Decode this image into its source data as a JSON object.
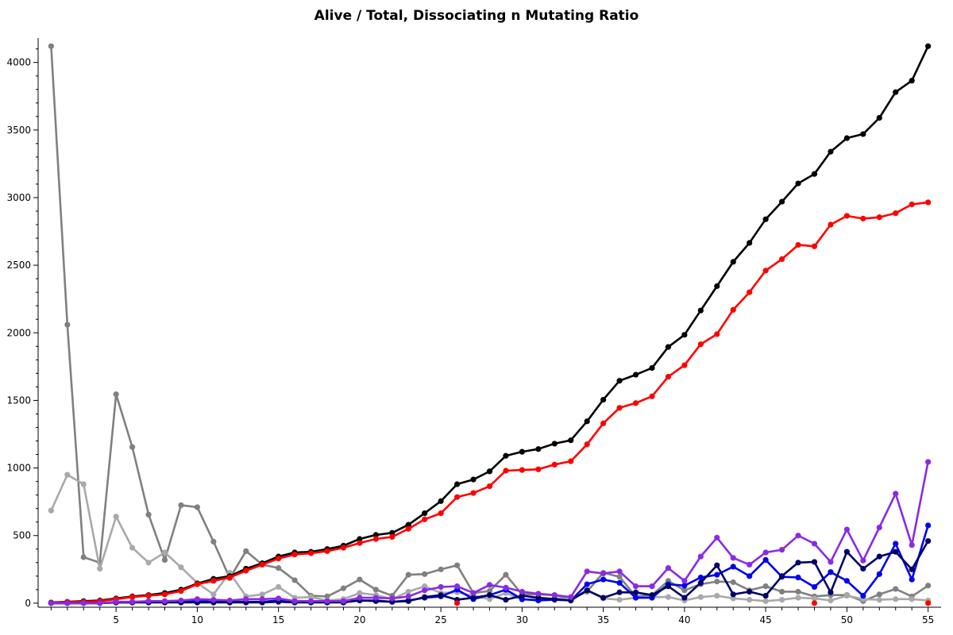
{
  "chart_data": {
    "type": "line",
    "title": "Alive / Total, Dissociating n Mutating Ratio",
    "xlabel": "",
    "ylabel": "",
    "xlim": [
      0.2,
      55.8
    ],
    "ylim": [
      -30,
      4180
    ],
    "x_ticks": [
      5,
      10,
      15,
      20,
      25,
      30,
      35,
      40,
      45,
      50,
      55
    ],
    "y_ticks": [
      0,
      500,
      1000,
      1500,
      2000,
      2500,
      3000,
      3500,
      4000
    ],
    "grid": false,
    "legend": "none",
    "x": [
      1,
      2,
      3,
      4,
      5,
      6,
      7,
      8,
      9,
      10,
      11,
      12,
      13,
      14,
      15,
      16,
      17,
      18,
      19,
      20,
      21,
      22,
      23,
      24,
      25,
      26,
      27,
      28,
      29,
      30,
      31,
      32,
      33,
      34,
      35,
      36,
      37,
      38,
      39,
      40,
      41,
      42,
      43,
      44,
      45,
      46,
      47,
      48,
      49,
      50,
      51,
      52,
      53,
      54,
      55
    ],
    "series": [
      {
        "color": "#808080",
        "values": [
          4120,
          2060,
          340,
          300,
          1545,
          1155,
          655,
          320,
          725,
          710,
          455,
          185,
          385,
          285,
          260,
          170,
          55,
          50,
          110,
          175,
          100,
          55,
          210,
          215,
          250,
          280,
          75,
          90,
          210,
          65,
          65,
          60,
          30,
          85,
          225,
          195,
          50,
          60,
          165,
          95,
          140,
          160,
          155,
          95,
          125,
          85,
          85,
          50,
          60,
          60,
          15,
          65,
          105,
          50,
          130
        ]
      },
      {
        "color": "#a9a9a9",
        "values": [
          685,
          950,
          880,
          255,
          640,
          410,
          300,
          375,
          265,
          150,
          65,
          225,
          50,
          65,
          120,
          40,
          45,
          20,
          30,
          75,
          60,
          30,
          85,
          125,
          75,
          80,
          55,
          30,
          75,
          25,
          30,
          35,
          30,
          95,
          35,
          25,
          40,
          45,
          45,
          20,
          45,
          55,
          35,
          25,
          15,
          25,
          40,
          35,
          20,
          55,
          30,
          25,
          30,
          30,
          20
        ]
      },
      {
        "color": "#000000",
        "values": [
          5,
          10,
          15,
          20,
          35,
          50,
          60,
          75,
          100,
          145,
          180,
          200,
          255,
          295,
          345,
          375,
          380,
          400,
          425,
          475,
          505,
          520,
          580,
          665,
          755,
          880,
          915,
          975,
          1090,
          1120,
          1140,
          1180,
          1205,
          1345,
          1505,
          1645,
          1690,
          1740,
          1895,
          1985,
          2165,
          2345,
          2525,
          2665,
          2840,
          2970,
          3105,
          3175,
          3340,
          3440,
          3470,
          3590,
          3780,
          3865,
          4120
        ]
      },
      {
        "color": "#ff0000",
        "values": [
          3,
          8,
          10,
          15,
          30,
          45,
          55,
          65,
          90,
          140,
          165,
          190,
          240,
          285,
          330,
          360,
          370,
          385,
          410,
          445,
          475,
          490,
          550,
          620,
          665,
          785,
          815,
          865,
          980,
          985,
          990,
          1025,
          1050,
          1175,
          1330,
          1445,
          1480,
          1530,
          1675,
          1760,
          1915,
          1990,
          2170,
          2300,
          2460,
          2545,
          2650,
          2640,
          2800,
          2865,
          2845,
          2855,
          2885,
          2950,
          2965
        ]
      },
      {
        "color": "#0000ee",
        "values": [
          0,
          0,
          0,
          0,
          5,
          5,
          10,
          10,
          10,
          15,
          10,
          10,
          10,
          10,
          20,
          10,
          10,
          10,
          10,
          20,
          20,
          10,
          20,
          40,
          50,
          100,
          30,
          60,
          100,
          30,
          20,
          25,
          20,
          140,
          175,
          150,
          40,
          40,
          140,
          130,
          190,
          210,
          270,
          200,
          320,
          195,
          190,
          120,
          230,
          165,
          55,
          215,
          440,
          175,
          575
        ]
      },
      {
        "color": "#000066",
        "values": [
          0,
          0,
          0,
          0,
          5,
          5,
          5,
          5,
          5,
          5,
          5,
          5,
          5,
          5,
          10,
          5,
          5,
          5,
          5,
          20,
          15,
          10,
          15,
          45,
          60,
          25,
          40,
          60,
          25,
          55,
          40,
          30,
          20,
          95,
          40,
          80,
          80,
          60,
          125,
          40,
          150,
          280,
          65,
          85,
          55,
          200,
          300,
          305,
          80,
          380,
          255,
          345,
          380,
          250,
          460
        ]
      },
      {
        "color": "#8a2be2",
        "values": [
          0,
          0,
          0,
          0,
          10,
          10,
          15,
          15,
          20,
          30,
          25,
          20,
          30,
          30,
          35,
          15,
          15,
          15,
          15,
          40,
          40,
          35,
          50,
          95,
          120,
          125,
          75,
          135,
          115,
          85,
          70,
          60,
          45,
          235,
          220,
          235,
          125,
          125,
          260,
          165,
          345,
          485,
          335,
          285,
          375,
          395,
          500,
          440,
          305,
          545,
          315,
          560,
          810,
          430,
          1045
        ]
      }
    ],
    "extra_points": {
      "color": "#ff0000",
      "points": [
        [
          26,
          0
        ],
        [
          48,
          0
        ],
        [
          55,
          0
        ]
      ]
    }
  }
}
